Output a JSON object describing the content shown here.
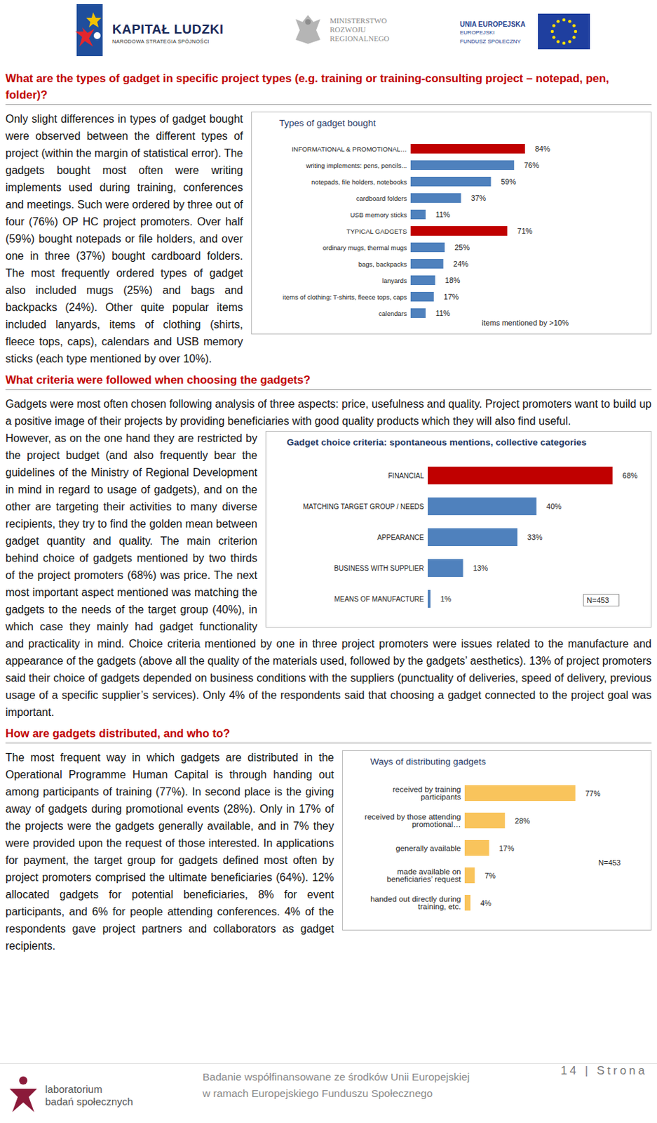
{
  "header": {
    "logo_left": {
      "title": "KAPITAŁ LUDZKI",
      "subtitle": "NARODOWA STRATEGIA SPÓJNOŚCI"
    },
    "logo_middle": {
      "lines": [
        "MINISTERSTWO",
        "ROZWOJU",
        "REGIONALNEGO"
      ]
    },
    "logo_right": {
      "lines": [
        "UNIA EUROPEJSKA",
        "EUROPEJSKI",
        "FUNDUSZ SPOŁECZNY"
      ]
    }
  },
  "sections": [
    {
      "heading": "What are the types of gadget in specific project types (e.g. training or training-consulting project – notepad, pen, folder)?",
      "paragraphs": [
        "Only slight differences in types of gadget bought were observed between the different types of project (within the margin of statistical error). The gadgets bought most often were writing implements used during training, conferences and meetings. Such were ordered by three out of four (76%) OP HC project promoters. Over half (59%) bought notepads or file holders, and over one in three (37%) bought cardboard folders. The most frequently ordered types of gadget also included mugs (25%) and bags and backpacks (24%). Other quite popular items included lanyards, items of clothing (shirts, fleece tops, caps), calendars and USB memory sticks (each type mentioned by over 10%)."
      ]
    },
    {
      "heading": "What criteria were followed when choosing the gadgets?",
      "paragraphs": [
        "Gadgets were most often chosen following analysis of three aspects: price, usefulness and quality. Project promoters want to build up a positive image of their projects by providing beneficiaries with good quality products which they will also find useful.",
        "However, as on the one hand they are restricted by the project budget (and also frequently bear the guidelines of the Ministry of Regional Development in mind in regard to usage of gadgets), and on the other are targeting their activities to many diverse recipients, they try to find the golden mean between gadget quantity and quality. The main criterion behind choice of gadgets mentioned by two thirds of the project promoters (68%) was price. The next most important aspect mentioned was matching the gadgets to the needs of the target group (40%), in which case they mainly had gadget functionality and practicality in mind. Choice criteria mentioned by one in three project promoters were issues related to the manufacture and appearance of the gadgets (above all the quality of the materials used, followed by the gadgets’ aesthetics). 13% of project promoters said their choice of gadgets depended on business conditions with the suppliers (punctuality of deliveries, speed of delivery, previous usage of a specific supplier’s services). Only 4% of the respondents said that choosing a gadget connected to the project goal was important."
      ]
    },
    {
      "heading": "How are gadgets distributed, and who to?",
      "paragraphs": [
        "The most frequent way in which gadgets are distributed in the Operational Programme Human Capital is through handing out among participants of training (77%). In second place is the giving away of gadgets during promotional events (28%). Only in 17% of the projects were the gadgets generally available, and in 7% they were provided upon the request of those interested. In applications for payment, the target group for gadgets defined most often by project promoters comprised the ultimate beneficiaries (64%). 12% allocated gadgets for potential beneficiaries, 8% for event participants, and 6% for people attending conferences. 4% of the respondents gave project partners and collaborators as gadget recipients."
      ]
    }
  ],
  "chart_data": [
    {
      "type": "bar",
      "orientation": "horizontal",
      "title": "Types of gadget bought",
      "categories": [
        "INFORMATIONAL & PROMOTIONAL…",
        "writing implements: pens, pencils...",
        "notepads, file holders, notebooks",
        "cardboard folders",
        "USB memory sticks",
        "TYPICAL GADGETS",
        "ordinary mugs, thermal mugs",
        "bags, backpacks",
        "lanyards",
        "items of clothing: T-shirts, fleece tops, caps",
        "calendars"
      ],
      "values": [
        84,
        76,
        59,
        37,
        11,
        71,
        25,
        24,
        18,
        17,
        11
      ],
      "value_labels": [
        "84%",
        "76%",
        "59%",
        "37%",
        "11%",
        "71%",
        "25%",
        "24%",
        "18%",
        "17%",
        "11%"
      ],
      "colors": [
        "#c00000",
        "#4f81bd",
        "#4f81bd",
        "#4f81bd",
        "#4f81bd",
        "#c00000",
        "#4f81bd",
        "#4f81bd",
        "#4f81bd",
        "#4f81bd",
        "#4f81bd"
      ],
      "xlim": [
        0,
        100
      ],
      "data_labels": true,
      "tick_labels": "y",
      "annotations": [
        "items mentioned by >10%"
      ]
    },
    {
      "type": "bar",
      "orientation": "horizontal",
      "title": "Gadget choice criteria: spontaneous mentions, collective categories",
      "categories": [
        "FINANCIAL",
        "MATCHING TARGET GROUP / NEEDS",
        "APPEARANCE",
        "BUSINESS WITH SUPPLIER",
        "MEANS OF MANUFACTURE"
      ],
      "values": [
        68,
        40,
        33,
        13,
        1
      ],
      "value_labels": [
        "68%",
        "40%",
        "33%",
        "13%",
        "1%"
      ],
      "colors": [
        "#c00000",
        "#4f81bd",
        "#4f81bd",
        "#4f81bd",
        "#4f81bd"
      ],
      "xlim": [
        0,
        70
      ],
      "data_labels": true,
      "tick_labels": "y",
      "annotations": [
        "N=453"
      ]
    },
    {
      "type": "bar",
      "orientation": "horizontal",
      "title": "Ways of distributing gadgets",
      "categories": [
        "received by training participants",
        "received by those attending promotional…",
        "generally available",
        "made available on beneficiaries’ request",
        "handed out directly during training, etc."
      ],
      "values": [
        77,
        28,
        17,
        7,
        4
      ],
      "value_labels": [
        "77%",
        "28%",
        "17%",
        "7%",
        "4%"
      ],
      "color": "#f9c45c",
      "xlim": [
        0,
        100
      ],
      "data_labels": true,
      "tick_labels": "y",
      "annotations": [
        "N=453"
      ]
    }
  ],
  "footer": {
    "logo": [
      "laboratorium",
      "badań społecznych"
    ],
    "lines": [
      "Badanie współfinansowane ze środków Unii Europejskiej",
      "w ramach Europejskiego Funduszu Społecznego"
    ],
    "page": "14 | Strona"
  }
}
